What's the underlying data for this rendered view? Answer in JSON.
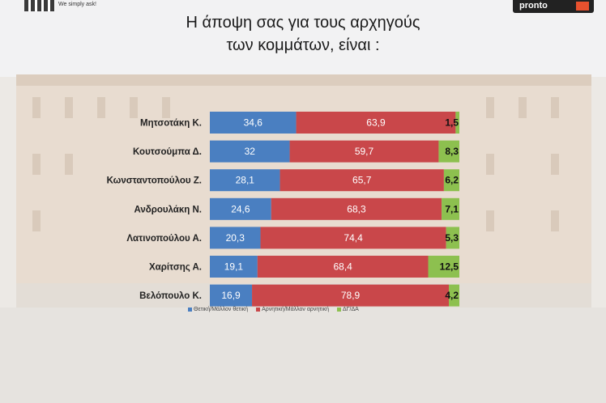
{
  "header": {
    "title_line1": "Η άποψη σας για τους αρχηγούς",
    "title_line2": "των κομμάτων,  είναι :",
    "left_logo_tagline": "We simply ask!",
    "right_logo_text": "pronto"
  },
  "colors": {
    "positive": "#4a7fc1",
    "negative": "#c9474a",
    "dk": "#8dc04f"
  },
  "chart_data": {
    "type": "bar",
    "stacked": true,
    "orientation": "horizontal",
    "title": "Η άποψη σας για τους αρχηγούς των κομμάτων,  είναι :",
    "categories": [
      "Μητσοτάκη Κ.",
      "Κουτσούμπα Δ.",
      "Κωνσταντοπούλου Ζ.",
      "Ανδρουλάκη Ν.",
      "Λατινοπούλου Α.",
      "Χαρίτσης Α.",
      "Βελόπουλο Κ."
    ],
    "series": [
      {
        "name": "Θετική/Μάλλον θετική",
        "color": "#4a7fc1",
        "values": [
          34.6,
          32,
          28.1,
          24.6,
          20.3,
          19.1,
          16.9
        ]
      },
      {
        "name": "Αρνητική/Μάλλον αρνητική",
        "color": "#c9474a",
        "values": [
          63.9,
          59.7,
          65.7,
          68.3,
          74.4,
          68.4,
          78.9
        ]
      },
      {
        "name": "ΔΓ/ΔΑ",
        "color": "#8dc04f",
        "values": [
          1.5,
          8.3,
          6.2,
          7.1,
          5.3,
          12.5,
          4.2
        ]
      }
    ],
    "labels": [
      [
        "34,6",
        "63,9",
        "1,5"
      ],
      [
        "32",
        "59,7",
        "8,3"
      ],
      [
        "28,1",
        "65,7",
        "6,2"
      ],
      [
        "24,6",
        "68,3",
        "7,1"
      ],
      [
        "20,3",
        "74,4",
        "5,3"
      ],
      [
        "19,1",
        "68,4",
        "12,5"
      ],
      [
        "16,9",
        "78,9",
        "4,2"
      ]
    ],
    "legend_position": "bottom",
    "grid": false
  }
}
